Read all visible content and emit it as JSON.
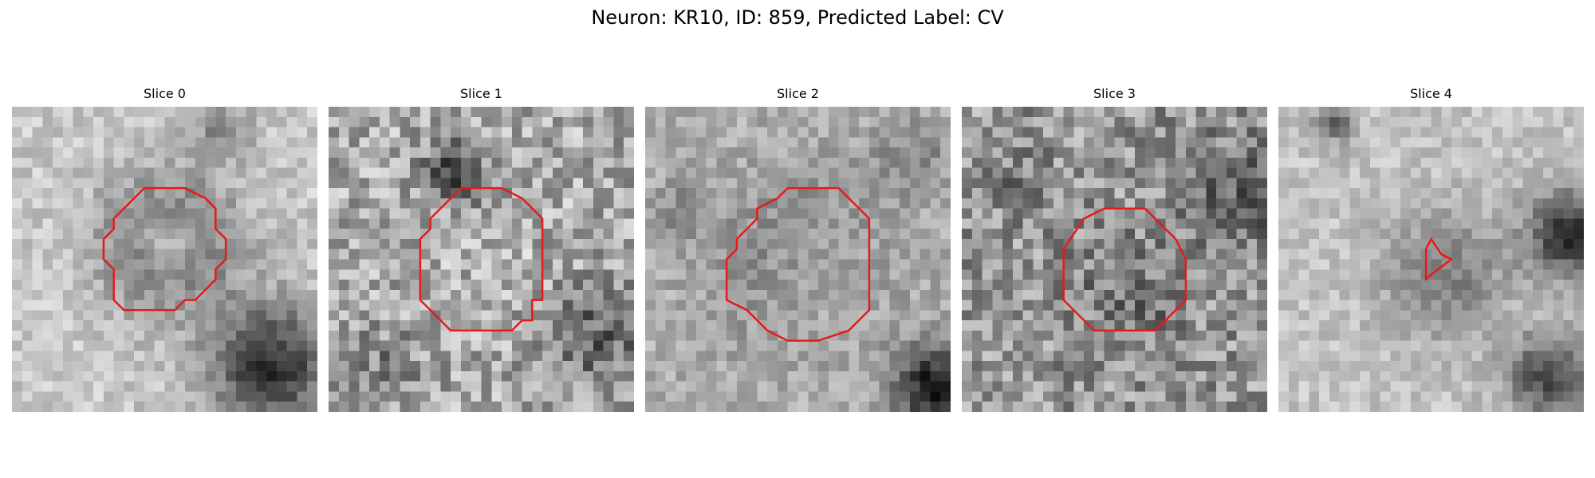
{
  "figure": {
    "suptitle": "Neuron: KR10, ID: 859, Predicted Label: CV",
    "panels": [
      {
        "title": "Slice 0",
        "seed": 11,
        "contour_color": "#e8191a"
      },
      {
        "title": "Slice 1",
        "seed": 23,
        "contour_color": "#e8191a"
      },
      {
        "title": "Slice 2",
        "seed": 37,
        "contour_color": "#e8191a"
      },
      {
        "title": "Slice 3",
        "seed": 41,
        "contour_color": "#e8191a"
      },
      {
        "title": "Slice 4",
        "seed": 59,
        "contour_color": "#e8191a"
      }
    ],
    "colormap": "grayscale"
  }
}
